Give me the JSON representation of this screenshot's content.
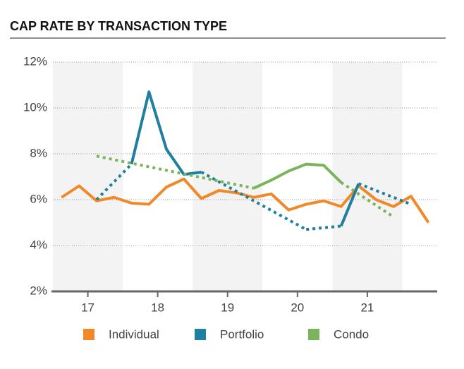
{
  "chart_data": {
    "type": "line",
    "title": "CAP RATE BY TRANSACTION TYPE",
    "x": [
      17.125,
      17.375,
      17.625,
      17.875,
      18.125,
      18.375,
      18.625,
      18.875,
      19.125,
      19.375,
      19.625,
      19.875,
      20.125,
      20.375,
      20.625,
      20.875,
      21.125,
      21.375,
      21.625,
      21.875,
      22.125,
      22.375
    ],
    "xlim": [
      17,
      22.5
    ],
    "xticks": [
      {
        "value": 17.5,
        "label": "17"
      },
      {
        "value": 18.5,
        "label": "18"
      },
      {
        "value": 19.5,
        "label": "19"
      },
      {
        "value": 20.5,
        "label": "20"
      },
      {
        "value": 21.5,
        "label": "21"
      }
    ],
    "ylim": [
      2,
      12
    ],
    "yticks": [
      {
        "value": 2,
        "label": "2%"
      },
      {
        "value": 4,
        "label": "4%"
      },
      {
        "value": 6,
        "label": "6%"
      },
      {
        "value": 8,
        "label": "8%"
      },
      {
        "value": 10,
        "label": "10%"
      },
      {
        "value": 12,
        "label": "12%"
      }
    ],
    "grid": true,
    "bands": true,
    "gap_style": "dotted",
    "legend": "bottom",
    "series": [
      {
        "name": "Individual",
        "color": "#f0892a",
        "values": [
          6.1,
          6.6,
          5.95,
          6.1,
          5.85,
          5.8,
          6.55,
          6.9,
          6.05,
          6.4,
          6.3,
          6.1,
          6.25,
          5.55,
          5.8,
          5.95,
          5.7,
          6.6,
          6.0,
          5.7,
          6.15,
          5.0
        ]
      },
      {
        "name": "Portfolio",
        "color": "#1f7f9f",
        "values": [
          null,
          null,
          6.0,
          null,
          7.55,
          10.7,
          8.2,
          7.1,
          7.2,
          null,
          null,
          null,
          null,
          null,
          4.7,
          null,
          4.85,
          6.7,
          null,
          null,
          5.8,
          null
        ]
      },
      {
        "name": "Condo",
        "color": "#7ab55c",
        "values": [
          null,
          null,
          7.9,
          null,
          null,
          null,
          null,
          null,
          null,
          null,
          null,
          6.5,
          6.85,
          7.25,
          7.55,
          7.5,
          6.75,
          null,
          null,
          5.25,
          null,
          null
        ]
      }
    ]
  }
}
